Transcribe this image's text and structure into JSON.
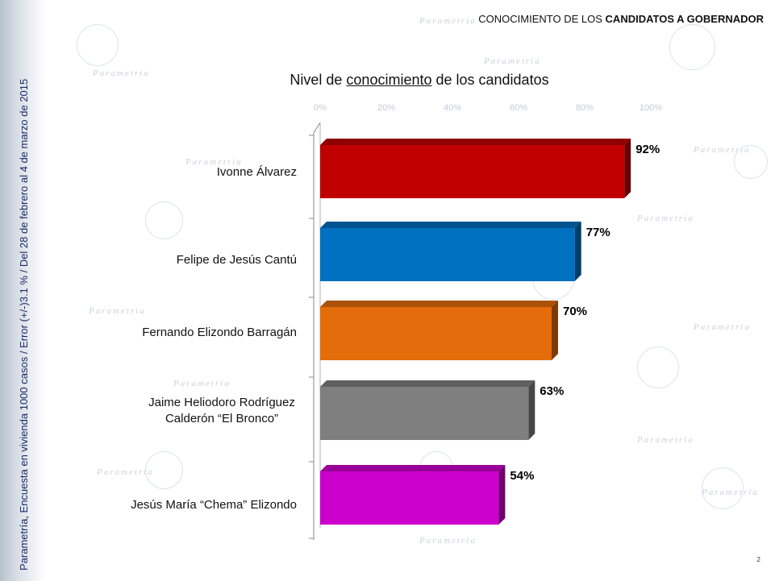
{
  "header": {
    "prefix": "CONOCIMIENTO DE LOS",
    "bold": "CANDIDATOS A GOBERNADOR"
  },
  "sidebar_note": "Parametría, Encuesta en vivienda 1000 casos / Error (+/-)3.1 % / Del 28 de febrero al 4 de marzo de 2015",
  "watermark_text": "Parametria",
  "page_number": "2",
  "chart_data": {
    "type": "bar",
    "orientation": "horizontal",
    "title_parts": [
      "Nivel de ",
      "conocimiento",
      " de los candidatos"
    ],
    "categories": [
      "Ivonne Álvarez",
      "Felipe de Jesús Cantú",
      "Fernando Elizondo Barragán",
      "Jaime Heliodoro Rodríguez Calderón  “El Bronco”",
      "Jesús María “Chema” Elizondo"
    ],
    "values": [
      92,
      77,
      70,
      63,
      54
    ],
    "value_labels": [
      "92%",
      "77%",
      "70%",
      "63%",
      "54%"
    ],
    "bar_colors": [
      "#c00000",
      "#0070c0",
      "#e46c0a",
      "#7f7f7f",
      "#cc00cc"
    ],
    "tick_labels": [
      "0%",
      "20%",
      "40%",
      "60%",
      "80%",
      "100%"
    ],
    "xlim": [
      0,
      100
    ],
    "grid": false
  }
}
